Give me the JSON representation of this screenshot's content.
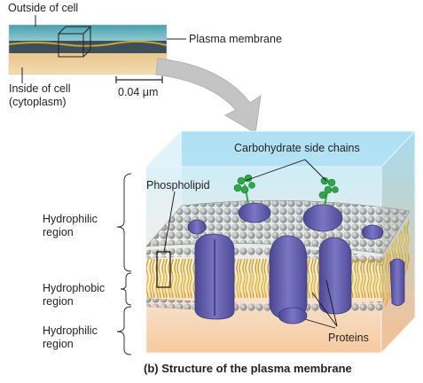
{
  "micrograph": {
    "outside_label": "Outside of cell",
    "membrane_label": "Plasma membrane",
    "inside_label_line1": "Inside of cell",
    "inside_label_line2": "(cytoplasm)",
    "scale_label": "0.04 μm"
  },
  "model": {
    "carbohydrate_label": "Carbohydrate side chains",
    "phospholipid_label": "Phospholipid",
    "proteins_label": "Proteins",
    "regions": [
      {
        "line1": "Hydrophilic",
        "line2": "region"
      },
      {
        "line1": "Hydrophobic",
        "line2": "region"
      },
      {
        "line1": "Hydrophilic",
        "line2": "region"
      }
    ]
  },
  "caption": "(b) Structure of the plasma membrane",
  "colors": {
    "lipid_head": "#9a9a9a",
    "lipid_tail": "#e2b72a",
    "protein": "#5e5aa8",
    "carbohydrate": "#2fa64b",
    "arrow": "#bdbdbd",
    "box_top": "#bfe8f5"
  }
}
